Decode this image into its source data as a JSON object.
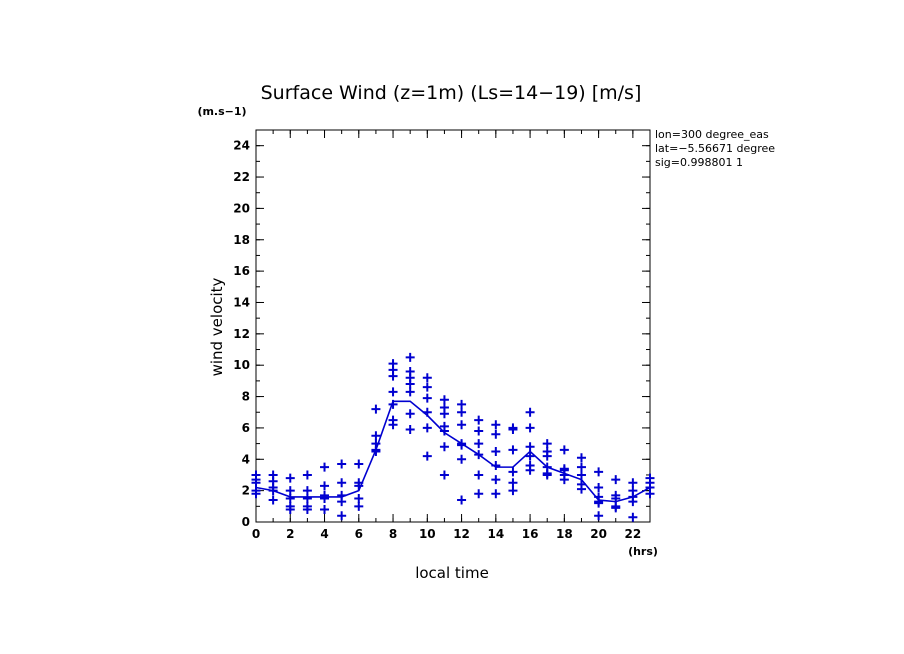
{
  "chart_data": {
    "type": "line",
    "title": "Surface Wind (z=1m) (Ls=14−19) [m/s]",
    "xlabel": "local time",
    "ylabel": "wind velocity",
    "x_unit": "(hrs)",
    "y_unit": "(m.s−1)",
    "xlim": [
      0,
      23
    ],
    "ylim": [
      0,
      25
    ],
    "x_ticks": [
      0,
      2,
      4,
      6,
      8,
      10,
      12,
      14,
      16,
      18,
      20,
      22
    ],
    "y_ticks": [
      0,
      2,
      4,
      6,
      8,
      10,
      12,
      14,
      16,
      18,
      20,
      22,
      24
    ],
    "info_lines": [
      "lon=300 degree_eas",
      "lat=−5.56671 degree",
      "sig=0.998801 1"
    ],
    "line_color": "#0000d0",
    "mean_series": {
      "x": [
        0,
        1,
        2,
        3,
        4,
        5,
        6,
        7,
        8,
        9,
        10,
        11,
        12,
        13,
        14,
        15,
        16,
        17,
        18,
        19,
        20,
        21,
        22,
        23
      ],
      "y": [
        2.2,
        2.0,
        1.6,
        1.6,
        1.6,
        1.6,
        2.0,
        4.6,
        7.7,
        7.7,
        6.8,
        5.7,
        5.0,
        4.3,
        3.5,
        3.5,
        4.5,
        3.5,
        3.1,
        2.7,
        1.4,
        1.3,
        1.6,
        2.2
      ]
    },
    "scatter_series": [
      {
        "x": 0,
        "y": [
          3.0,
          2.7,
          2.5,
          2.0,
          1.8
        ]
      },
      {
        "x": 1,
        "y": [
          3.0,
          2.6,
          2.2,
          2.0,
          1.4
        ]
      },
      {
        "x": 2,
        "y": [
          2.8,
          2.0,
          1.5,
          1.0,
          0.8
        ]
      },
      {
        "x": 3,
        "y": [
          3.0,
          2.0,
          1.5,
          1.0,
          0.8
        ]
      },
      {
        "x": 4,
        "y": [
          3.5,
          2.3,
          1.7,
          1.5,
          0.8
        ]
      },
      {
        "x": 5,
        "y": [
          3.7,
          2.5,
          1.7,
          1.3,
          0.4
        ]
      },
      {
        "x": 6,
        "y": [
          3.7,
          2.5,
          2.3,
          1.5,
          1.0
        ]
      },
      {
        "x": 7,
        "y": [
          7.2,
          5.5,
          5.0,
          4.6,
          4.5
        ]
      },
      {
        "x": 8,
        "y": [
          10.1,
          9.7,
          9.3,
          8.3,
          7.5,
          6.5,
          6.2
        ]
      },
      {
        "x": 9,
        "y": [
          10.5,
          9.6,
          9.2,
          8.8,
          8.3,
          6.9,
          5.9
        ]
      },
      {
        "x": 10,
        "y": [
          9.2,
          8.6,
          7.9,
          7.0,
          6.0,
          4.2
        ]
      },
      {
        "x": 11,
        "y": [
          7.8,
          7.3,
          6.9,
          6.1,
          5.8,
          4.8,
          3.0
        ]
      },
      {
        "x": 12,
        "y": [
          7.5,
          7.0,
          6.2,
          5.0,
          4.9,
          4.0,
          1.4
        ]
      },
      {
        "x": 13,
        "y": [
          6.5,
          5.8,
          5.0,
          4.3,
          3.0,
          1.8
        ]
      },
      {
        "x": 14,
        "y": [
          6.2,
          5.6,
          4.5,
          3.6,
          2.7,
          1.8
        ]
      },
      {
        "x": 15,
        "y": [
          6.0,
          5.9,
          4.6,
          3.2,
          2.5,
          2.0
        ]
      },
      {
        "x": 16,
        "y": [
          7.0,
          6.0,
          4.8,
          4.2,
          3.6,
          3.3
        ]
      },
      {
        "x": 17,
        "y": [
          5.0,
          4.5,
          4.2,
          3.5,
          3.1,
          3.0
        ]
      },
      {
        "x": 18,
        "y": [
          4.6,
          3.4,
          3.3,
          3.0,
          2.7
        ]
      },
      {
        "x": 19,
        "y": [
          4.1,
          3.5,
          3.0,
          2.4,
          2.1
        ]
      },
      {
        "x": 20,
        "y": [
          3.2,
          2.2,
          1.6,
          1.3,
          1.2,
          0.4
        ]
      },
      {
        "x": 21,
        "y": [
          2.7,
          1.7,
          1.5,
          1.0,
          0.9
        ]
      },
      {
        "x": 22,
        "y": [
          2.5,
          2.0,
          1.6,
          1.3,
          0.3
        ]
      },
      {
        "x": 23,
        "y": [
          2.8,
          2.5,
          2.2,
          1.8
        ]
      }
    ]
  }
}
